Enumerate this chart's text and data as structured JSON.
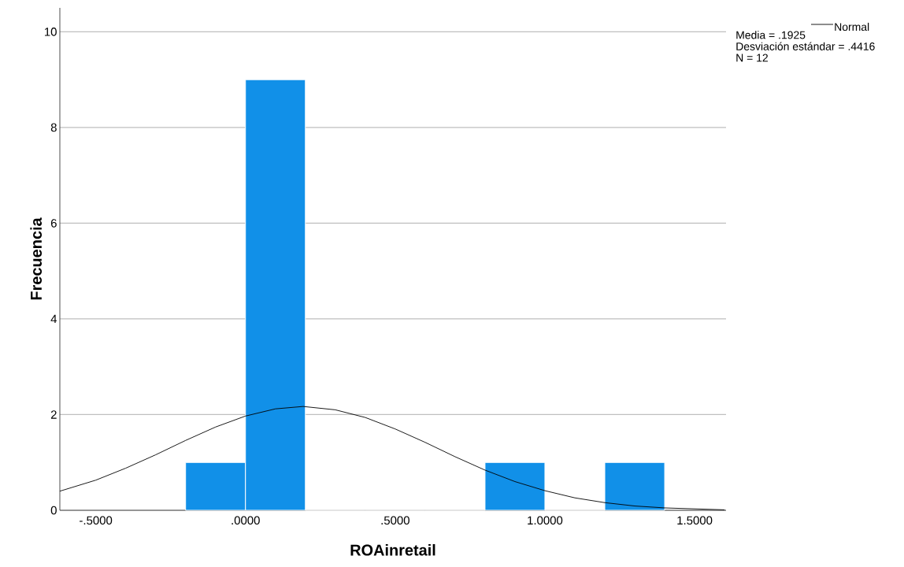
{
  "chart_data": {
    "type": "histogram",
    "xlabel": "ROAinretail",
    "ylabel": "Frecuencia",
    "series": [
      {
        "color": "#1190e8",
        "bins": [
          -0.2,
          0,
          0.2,
          0.4,
          0.6,
          0.8,
          1.0,
          1.2,
          1.4
        ],
        "values": [
          1,
          9,
          0,
          0,
          0,
          1,
          0,
          1
        ]
      },
      {
        "type": "line",
        "name": "Normal",
        "color": "#000000",
        "x": [
          -0.62,
          -0.5,
          -0.4,
          -0.3,
          -0.2,
          -0.1,
          0,
          0.1,
          0.1925,
          0.3,
          0.4,
          0.5,
          0.6,
          0.7,
          0.8,
          0.9,
          1.0,
          1.1,
          1.2,
          1.3,
          1.4,
          1.5,
          1.6
        ],
        "values": [
          0.4,
          0.63,
          0.88,
          1.16,
          1.46,
          1.74,
          1.97,
          2.12,
          2.17,
          2.1,
          1.94,
          1.7,
          1.42,
          1.12,
          0.84,
          0.6,
          0.41,
          0.26,
          0.16,
          0.09,
          0.05,
          0.03,
          0.01
        ]
      }
    ],
    "annotations": [
      "Media = .1925",
      "Desviación estándar = .4416",
      "N = 12"
    ],
    "xlim": [
      -0.62,
      1.605
    ],
    "ylim": [
      0,
      10.5
    ],
    "xticks": [
      {
        "value": -0.5,
        "label": "-.5000"
      },
      {
        "value": 0,
        "label": ".0000"
      },
      {
        "value": 0.5,
        "label": ".5000"
      },
      {
        "value": 1.0,
        "label": "1.0000"
      },
      {
        "value": 1.5,
        "label": "1.5000"
      }
    ],
    "yticks": [
      0,
      2,
      4,
      6,
      8,
      10
    ],
    "grid": "y",
    "legend": "top right",
    "line_style": "solid",
    "marker": "none"
  }
}
